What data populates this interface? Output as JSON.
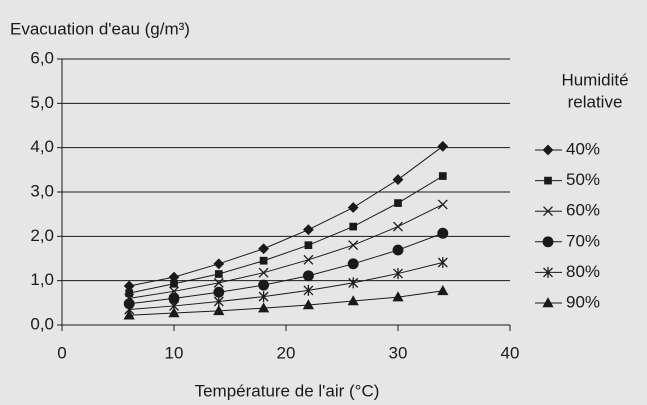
{
  "chart_data": {
    "type": "line",
    "y_label": "Evacuation d'eau (g/m³)",
    "x_label": "Température de l'air (°C)",
    "legend_title": [
      "Humidité",
      "relative"
    ],
    "legend": "right",
    "grid": true,
    "x": [
      6,
      10,
      14,
      18,
      22,
      26,
      30,
      34
    ],
    "xlim": [
      0,
      40
    ],
    "xticks": [
      0,
      10,
      20,
      30,
      40
    ],
    "ylim": [
      0,
      6
    ],
    "yticks": [
      {
        "value": 0,
        "label": "0,0"
      },
      {
        "value": 1,
        "label": "1,0"
      },
      {
        "value": 2,
        "label": "2,0"
      },
      {
        "value": 3,
        "label": "3,0"
      },
      {
        "value": 4,
        "label": "4,0"
      },
      {
        "value": 5,
        "label": "5,0"
      },
      {
        "value": 6,
        "label": "6,0"
      }
    ],
    "series": [
      {
        "name": "40%",
        "color": "#1a1a1a",
        "marker": "diamond",
        "values": [
          0.88,
          1.08,
          1.38,
          1.72,
          2.15,
          2.65,
          3.28,
          4.03
        ]
      },
      {
        "name": "50%",
        "color": "#1a1a1a",
        "marker": "square",
        "values": [
          0.72,
          0.93,
          1.15,
          1.45,
          1.8,
          2.22,
          2.75,
          3.36
        ]
      },
      {
        "name": "60%",
        "color": "#1a1a1a",
        "marker": "x",
        "values": [
          0.6,
          0.76,
          0.95,
          1.18,
          1.47,
          1.8,
          2.22,
          2.72
        ]
      },
      {
        "name": "70%",
        "color": "#1a1a1a",
        "marker": "circle",
        "values": [
          0.48,
          0.6,
          0.74,
          0.9,
          1.11,
          1.38,
          1.69,
          2.07
        ]
      },
      {
        "name": "80%",
        "color": "#1a1a1a",
        "marker": "asterisk",
        "values": [
          0.35,
          0.43,
          0.53,
          0.64,
          0.78,
          0.95,
          1.16,
          1.41
        ]
      },
      {
        "name": "90%",
        "color": "#1a1a1a",
        "marker": "triangle",
        "values": [
          0.22,
          0.27,
          0.32,
          0.38,
          0.45,
          0.54,
          0.63,
          0.77
        ]
      }
    ]
  }
}
